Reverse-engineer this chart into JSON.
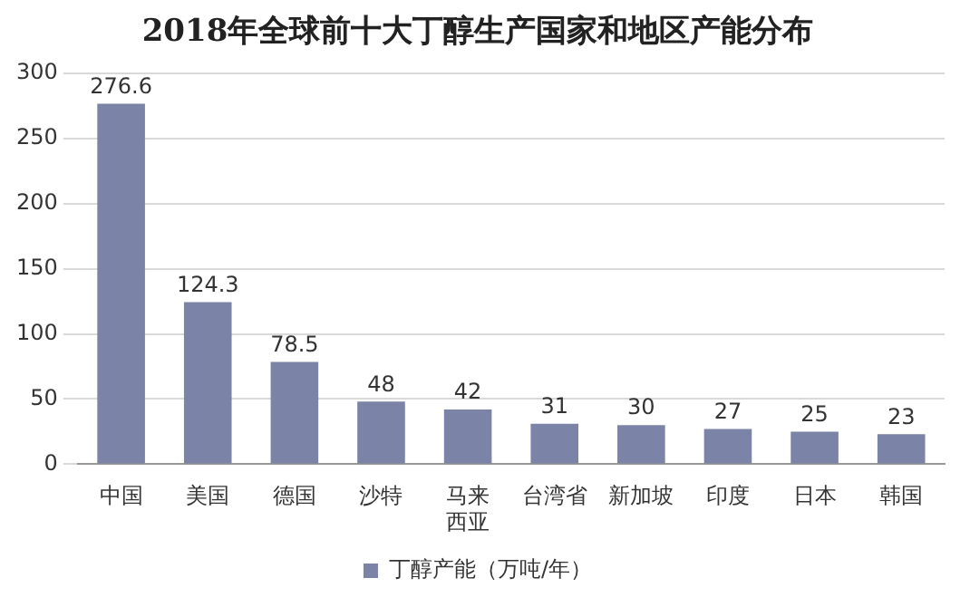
{
  "chart_data": {
    "type": "bar",
    "title": "2018年全球前十大丁醇生产国家和地区产能分布",
    "categories": [
      "中国",
      "美国",
      "德国",
      "沙特",
      "马来西亚",
      "台湾省",
      "新加坡",
      "印度",
      "日本",
      "韩国"
    ],
    "series": [
      {
        "name": "丁醇产能（万吨/年）",
        "color": "#7b83a6",
        "values": [
          276.6,
          124.3,
          78.5,
          48,
          42,
          31,
          30,
          27,
          25,
          23
        ]
      }
    ],
    "ylim": [
      0,
      300
    ],
    "yticks": [
      0,
      50,
      100,
      150,
      200,
      250,
      300
    ],
    "grid": "y",
    "legend": "bottom",
    "data_labels": true
  }
}
